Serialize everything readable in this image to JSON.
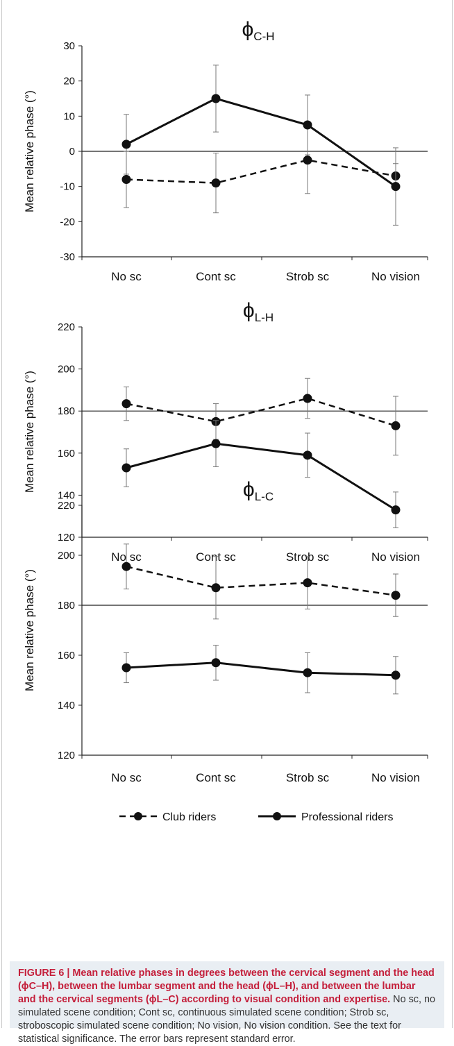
{
  "chart_data": [
    {
      "type": "line",
      "title_symbol": "ϕ",
      "title_sub": "C-H",
      "ylabel": "Mean relative phase (°)",
      "categories": [
        "No sc",
        "Cont sc",
        "Strob sc",
        "No vision"
      ],
      "ylim": [
        -30,
        30
      ],
      "yticks": [
        30,
        20,
        10,
        0,
        -10,
        -20,
        -30
      ],
      "reference_line": 0,
      "series": [
        {
          "name": "Club riders",
          "style": "dashed",
          "values": [
            -8,
            -9,
            -2.5,
            -7
          ],
          "errors": [
            8,
            8.5,
            9.5,
            3.5
          ]
        },
        {
          "name": "Professional riders",
          "style": "solid",
          "values": [
            2,
            15,
            7.5,
            -10
          ],
          "errors": [
            8.5,
            9.5,
            8.5,
            11
          ]
        }
      ]
    },
    {
      "type": "line",
      "title_symbol": "ϕ",
      "title_sub": "L-H",
      "ylabel": "Mean relative phase (°)",
      "categories": [
        "No sc",
        "Cont sc",
        "Strob sc",
        "No vision"
      ],
      "ylim": [
        120,
        220
      ],
      "yticks": [
        220,
        200,
        180,
        160,
        140,
        120
      ],
      "reference_line": 180,
      "series": [
        {
          "name": "Club riders",
          "style": "dashed",
          "values": [
            183.5,
            175,
            186,
            173
          ],
          "errors": [
            8,
            8.5,
            9.5,
            14
          ]
        },
        {
          "name": "Professional riders",
          "style": "solid",
          "values": [
            153,
            164.5,
            159,
            133
          ],
          "errors": [
            9,
            11,
            10.5,
            8.5
          ]
        }
      ]
    },
    {
      "type": "line",
      "title_symbol": "ϕ",
      "title_sub": "L-C",
      "ylabel": "Mean relative phase (°)",
      "categories": [
        "No sc",
        "Cont sc",
        "Strob sc",
        "No vision"
      ],
      "ylim": [
        120,
        220
      ],
      "yticks": [
        220,
        200,
        180,
        160,
        140,
        120
      ],
      "reference_line": 180,
      "series": [
        {
          "name": "Club riders",
          "style": "dashed",
          "values": [
            195.5,
            187,
            189,
            184
          ],
          "errors": [
            9,
            12.5,
            10.5,
            8.5
          ]
        },
        {
          "name": "Professional riders",
          "style": "solid",
          "values": [
            155,
            157,
            153,
            152
          ],
          "errors": [
            6,
            7,
            8,
            7.5
          ]
        }
      ]
    }
  ],
  "legend": [
    {
      "label": "Club riders",
      "style": "dashed"
    },
    {
      "label": "Professional riders",
      "style": "solid"
    }
  ],
  "caption": {
    "lead": "FIGURE 6 | Mean relative phases in degrees between the cervical segment and the head (ϕC–H), between the lumbar segment and the head (ϕL–H), and between the lumbar and the cervical segments (ϕL–C) according to visual condition and expertise.",
    "rest": " No sc, no simulated scene condition; Cont sc, continuous simulated scene condition; Strob sc, stroboscopic simulated scene condition; No vision, No vision condition. See the text for statistical significance. The error bars represent standard error."
  }
}
